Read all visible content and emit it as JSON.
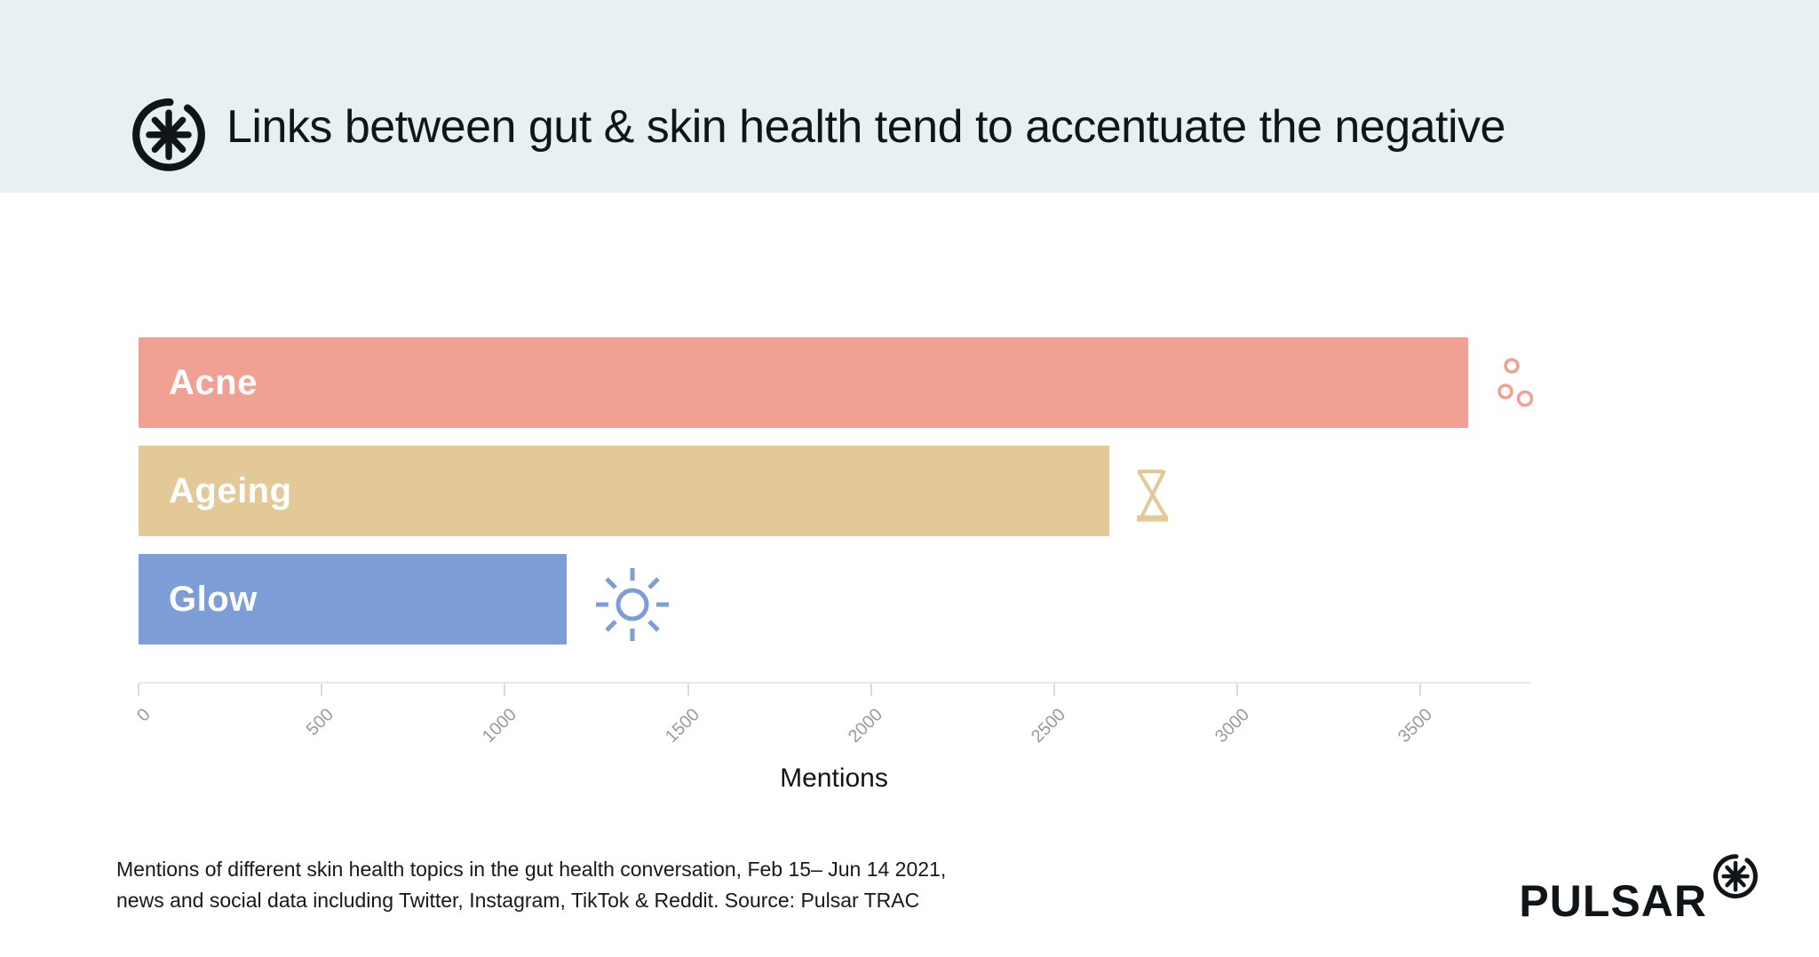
{
  "header": {
    "title": "Links between gut & skin health tend to accentuate the negative",
    "logo_icon": "pulsar-asterisk-mark"
  },
  "chart_data": {
    "type": "bar",
    "orientation": "horizontal",
    "title": "Links between gut & skin health tend to accentuate the negative",
    "categories": [
      "Acne",
      "Ageing",
      "Glow"
    ],
    "values": [
      3630,
      2650,
      1170
    ],
    "bar_colors": [
      "#F1A094",
      "#E3C898",
      "#7C9DD5"
    ],
    "bar_icons": [
      "circles-icon",
      "hourglass-icon",
      "sun-icon"
    ],
    "xlabel": "Mentions",
    "ylabel": "",
    "x_ticks": [
      0,
      500,
      1000,
      1500,
      2000,
      2500,
      3000,
      3500
    ],
    "xlim": [
      0,
      3800
    ],
    "grid": false,
    "legend": "none"
  },
  "footer": {
    "caption_line1": "Mentions of different skin health topics in the gut health conversation, Feb 15– Jun 14 2021,",
    "caption_line2": "news and social data including Twitter, Instagram, TikTok & Reddit. Source: Pulsar TRAC",
    "brand": "PULSAR",
    "brand_icon": "pulsar-asterisk-mark"
  },
  "colors": {
    "header_bg": "#E7F1F4",
    "axis_line": "#E9E9E9",
    "tick_text": "#9A9A9A",
    "text": "#10151A"
  }
}
